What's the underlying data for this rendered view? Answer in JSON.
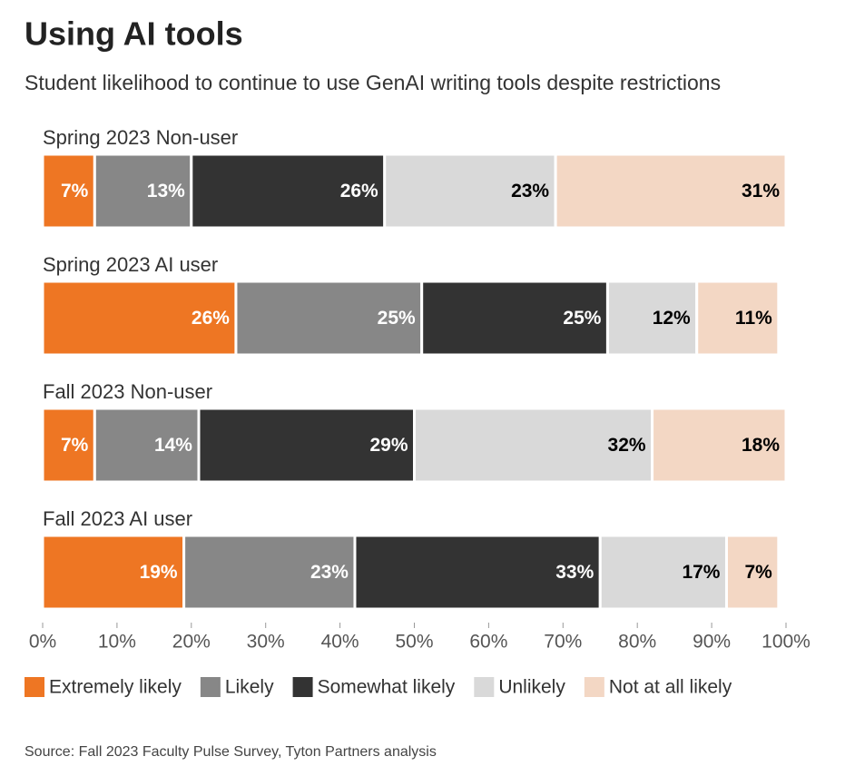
{
  "chart_data": {
    "type": "stacked-bar-horizontal",
    "title": "Using AI tools",
    "subtitle": "Student likelihood to continue to use GenAI writing tools despite restrictions",
    "source": "Source: Fall 2023 Faculty Pulse Survey, Tyton Partners analysis",
    "categories": [
      "Spring 2023 Non-user",
      "Spring 2023 AI user",
      "Fall 2023 Non-user",
      "Fall 2023 AI user"
    ],
    "series": [
      {
        "name": "Extremely likely",
        "color": "#ee7623",
        "label_color": "#ffffff",
        "values": [
          7,
          26,
          7,
          19
        ],
        "value_labels": [
          "7%",
          "26%",
          "7%",
          "19%"
        ]
      },
      {
        "name": "Likely",
        "color": "#878787",
        "label_color": "#ffffff",
        "values": [
          13,
          25,
          14,
          23
        ],
        "value_labels": [
          "13%",
          "25%",
          "14%",
          "23%"
        ]
      },
      {
        "name": "Somewhat likely",
        "color": "#333333",
        "label_color": "#ffffff",
        "values": [
          26,
          25,
          29,
          33
        ],
        "value_labels": [
          "26%",
          "25%",
          "29%",
          "33%"
        ]
      },
      {
        "name": "Unlikely",
        "color": "#d9d9d9",
        "label_color": "#000000",
        "values": [
          23,
          12,
          32,
          17
        ],
        "value_labels": [
          "23%",
          "12%",
          "32%",
          "17%"
        ]
      },
      {
        "name": "Not at all likely",
        "color": "#f3d7c4",
        "label_color": "#000000",
        "values": [
          31,
          11,
          18,
          7
        ],
        "value_labels": [
          "31%",
          "11%",
          "18%",
          "7%"
        ]
      }
    ],
    "xlim": [
      0,
      100
    ],
    "xticks": [
      {
        "value": 0,
        "label": "0%"
      },
      {
        "value": 10,
        "label": "10%"
      },
      {
        "value": 20,
        "label": "20%"
      },
      {
        "value": 30,
        "label": "30%"
      },
      {
        "value": 40,
        "label": "40%"
      },
      {
        "value": 50,
        "label": "50%"
      },
      {
        "value": 60,
        "label": "60%"
      },
      {
        "value": 70,
        "label": "70%"
      },
      {
        "value": 80,
        "label": "80%"
      },
      {
        "value": 90,
        "label": "90%"
      },
      {
        "value": 100,
        "label": "100%"
      }
    ],
    "grid": false,
    "legend": "bottom"
  }
}
